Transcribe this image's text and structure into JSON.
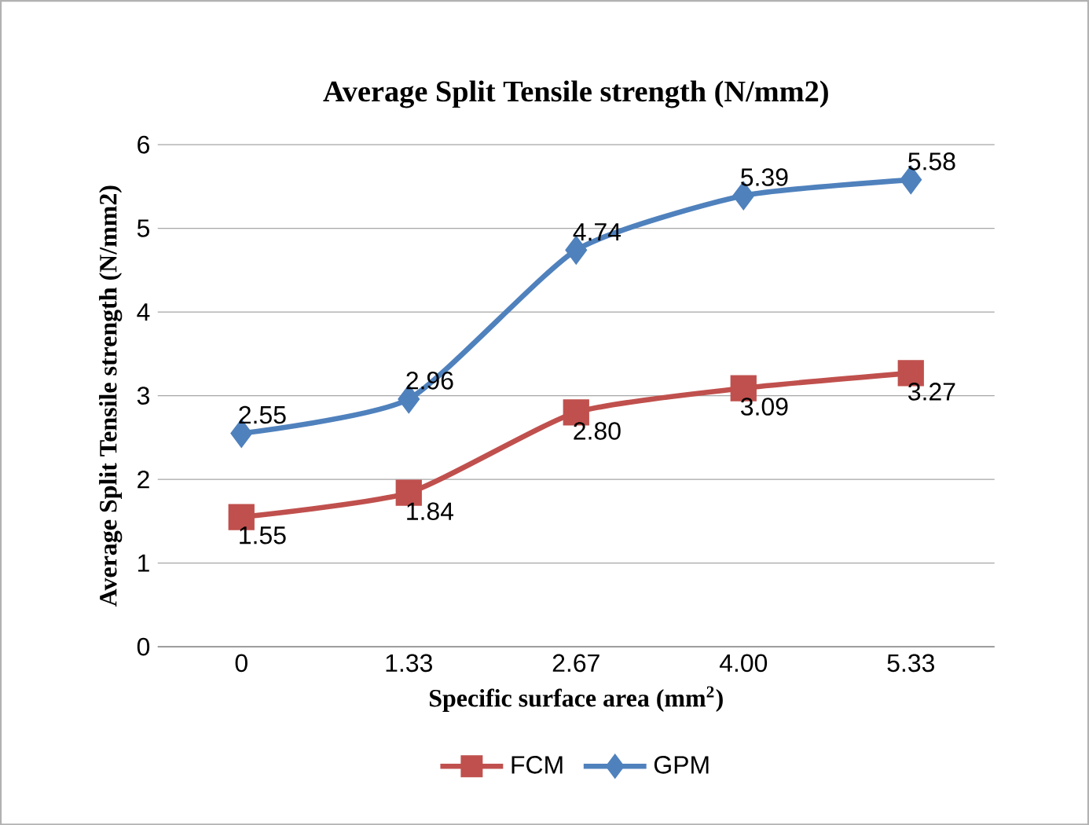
{
  "chart_data": {
    "type": "line",
    "title": "Average Split Tensile strength (N/mm2)",
    "xlabel": "Specific surface area (mm$^{2}$)",
    "ylabel": "Average Split Tensile strength (N/mm2)",
    "categories": [
      "0",
      "1.33",
      "2.67",
      "4.00",
      "5.33"
    ],
    "series": [
      {
        "name": "FCM",
        "color": "#c0504d",
        "marker": "square",
        "values": [
          1.55,
          1.84,
          2.8,
          3.09,
          3.27
        ],
        "value_labels": [
          "1.55",
          "1.84",
          "2.80",
          "3.09",
          "3.27"
        ]
      },
      {
        "name": "GPM",
        "color": "#4f81bd",
        "marker": "diamond",
        "values": [
          2.55,
          2.96,
          4.74,
          5.39,
          5.58
        ],
        "value_labels": [
          "2.55",
          "2.96",
          "4.74",
          "5.39",
          "5.58"
        ]
      }
    ],
    "ylim": [
      0,
      6
    ],
    "yticks": [
      0,
      1,
      2,
      3,
      4,
      5,
      6
    ],
    "grid": "y",
    "legend": "bottom"
  }
}
